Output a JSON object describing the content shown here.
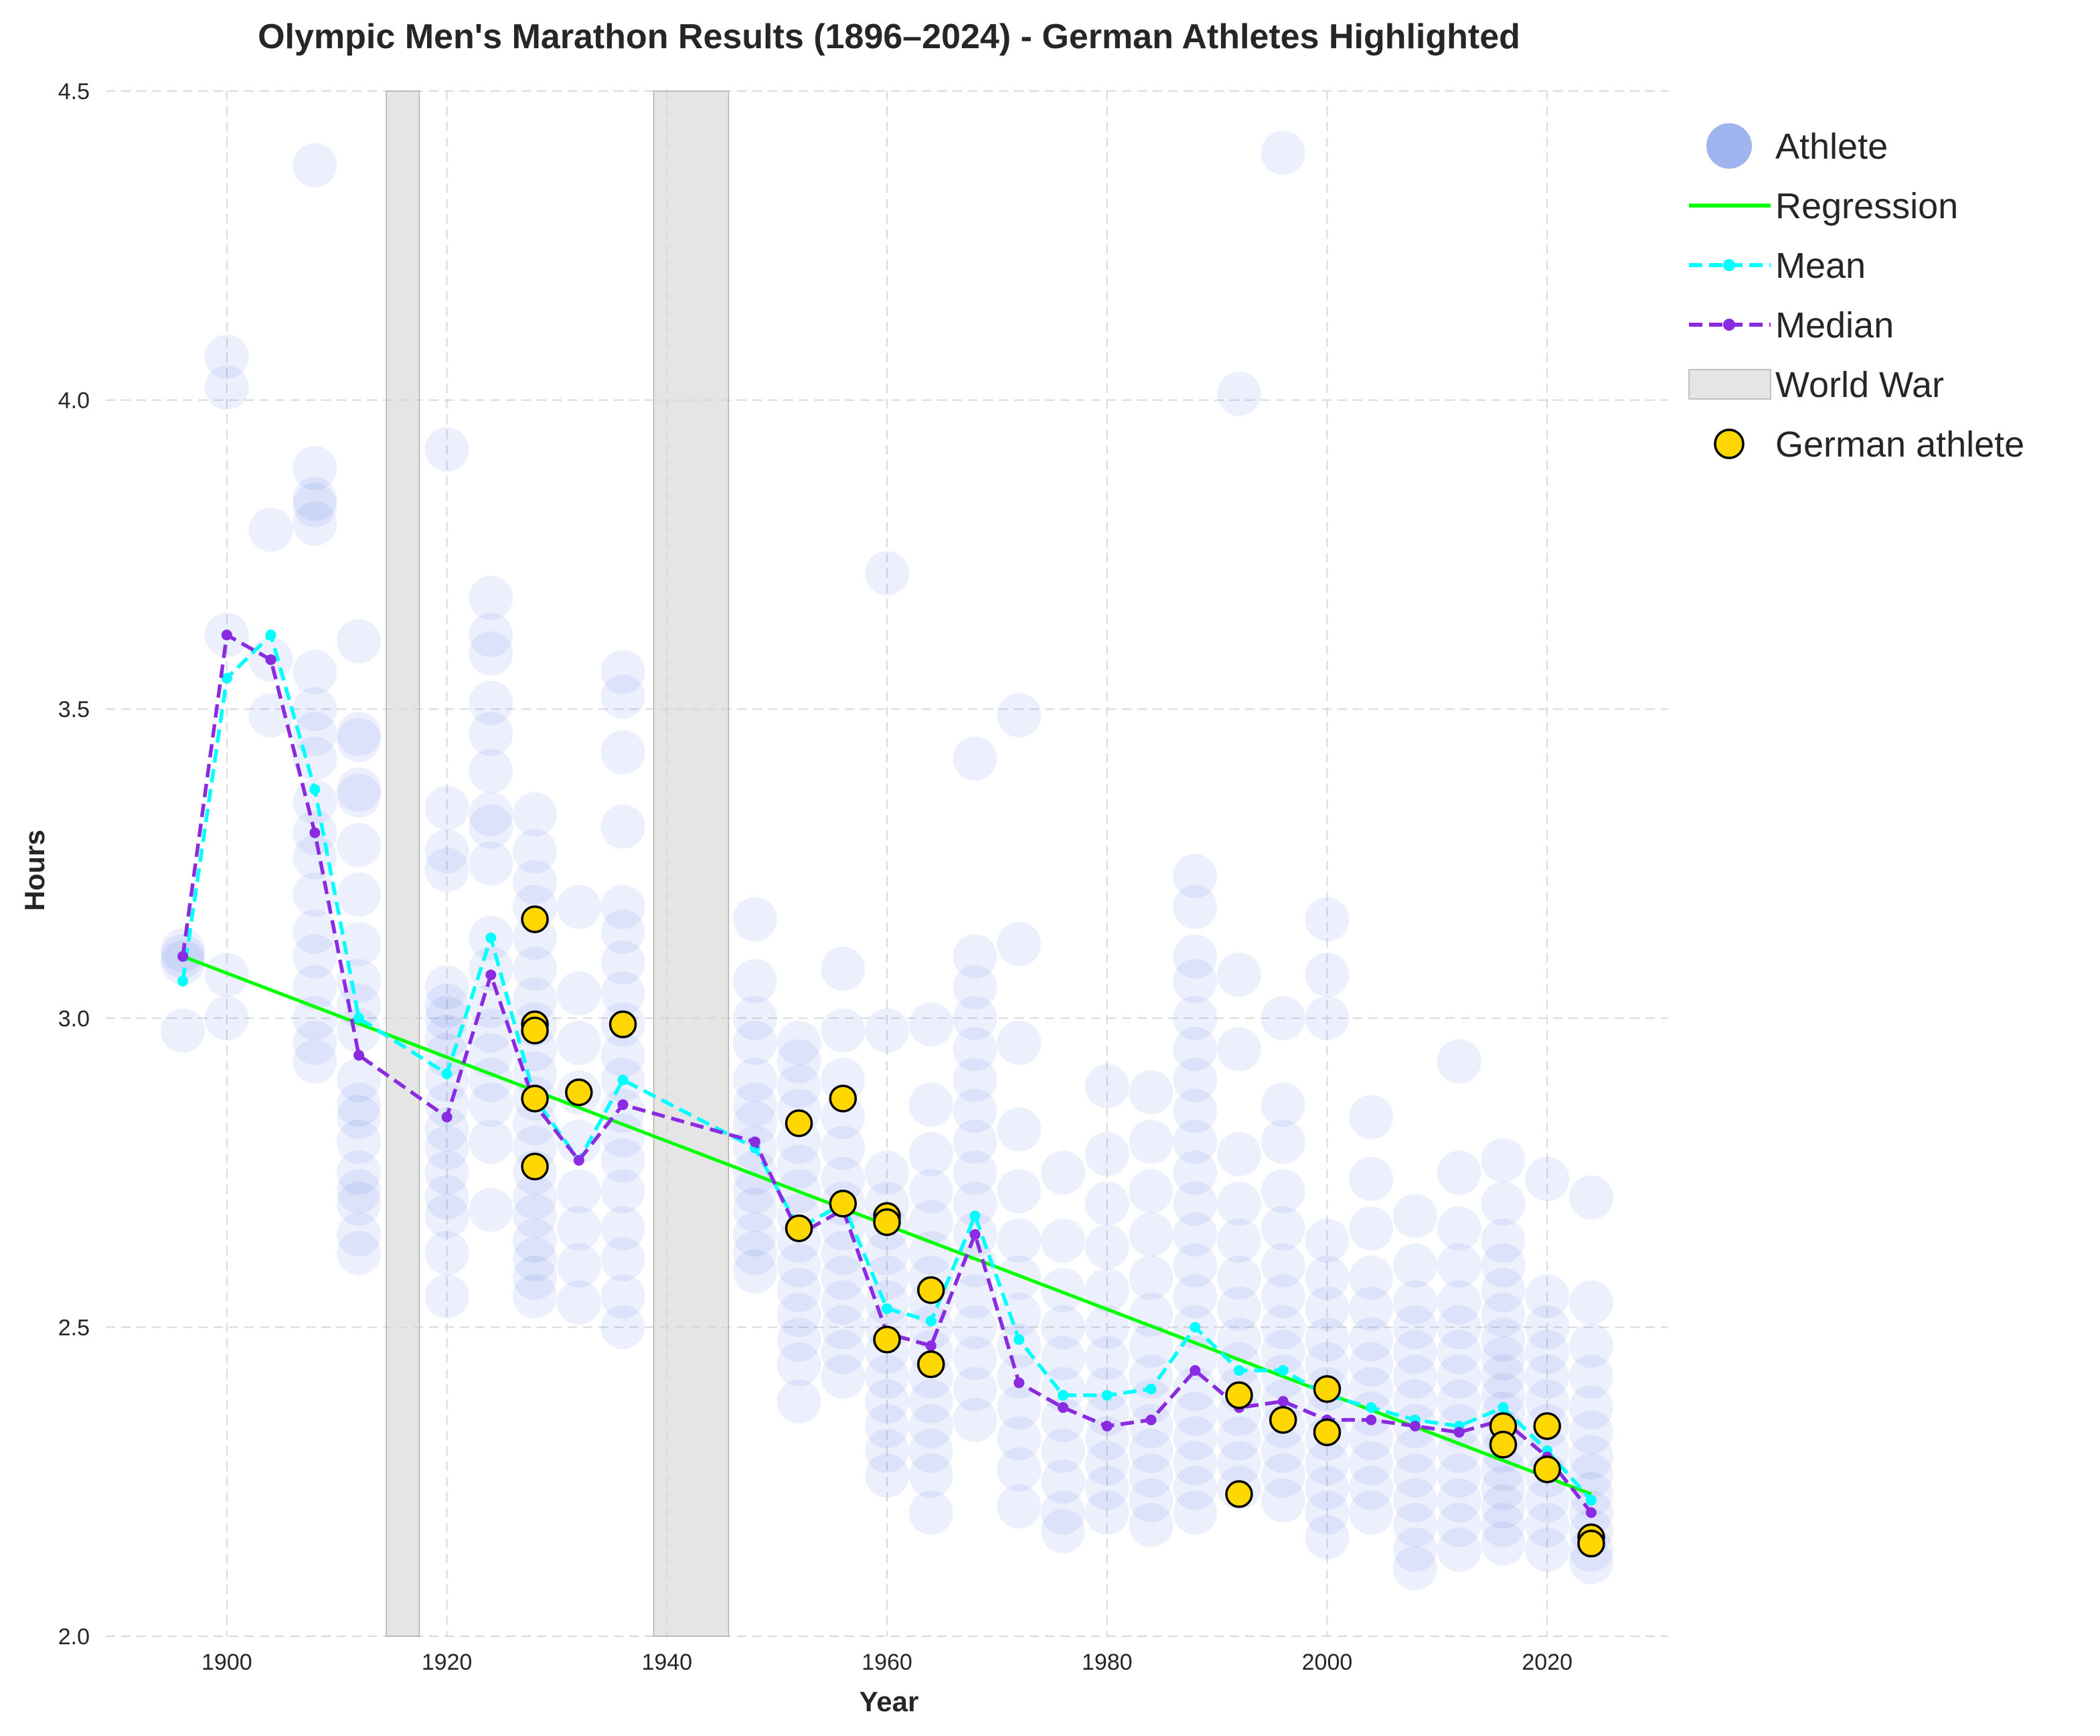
{
  "chart_data": {
    "type": "scatter",
    "title": "Olympic Men's Marathon Results (1896–2024) - German Athletes Highlighted",
    "xlabel": "Year",
    "ylabel": "Hours",
    "xlim": [
      1889,
      2031
    ],
    "ylim": [
      2.0,
      4.5
    ],
    "x_ticks": [
      1900,
      1920,
      1940,
      1960,
      1980,
      2000,
      2020
    ],
    "y_ticks": [
      2.0,
      2.5,
      3.0,
      3.5,
      4.0,
      4.5
    ],
    "x_tick_labels": [
      "1900",
      "1920",
      "1940",
      "1960",
      "1980",
      "2000",
      "2020"
    ],
    "y_tick_labels": [
      "2.0",
      "2.5",
      "3.0",
      "3.5",
      "4.0",
      "4.5"
    ],
    "grid": true,
    "legend_position": "top-right, outside plot",
    "legend": [
      {
        "label": "Athlete",
        "marker": "circle",
        "color": "#4169e1"
      },
      {
        "label": "Regression",
        "marker": "line",
        "color": "#00ff00"
      },
      {
        "label": "Mean",
        "marker": "dashed-line-dot",
        "color": "#00ffff"
      },
      {
        "label": "Median",
        "marker": "dashed-line-dot",
        "color": "#8a2be2"
      },
      {
        "label": "World War",
        "marker": "band",
        "color": "#d3d3d3"
      },
      {
        "label": "German athlete",
        "marker": "circle-outlined",
        "color": "#ffd700"
      }
    ],
    "colors": {
      "athlete": "#4169e1",
      "regression": "#00ff00",
      "mean": "#00ffff",
      "median": "#8a2be2",
      "war_band": "#d3d3d3",
      "german_fill": "#ffd700",
      "german_edge": "#000000"
    },
    "world_wars": [
      {
        "start": 1914.5,
        "end": 1917.5
      },
      {
        "start": 1938.8,
        "end": 1945.6
      }
    ],
    "regression": {
      "x": [
        1896,
        2024
      ],
      "y": [
        3.1,
        2.23
      ]
    },
    "mean": {
      "x": [
        1896,
        1900,
        1904,
        1908,
        1912,
        1920,
        1924,
        1928,
        1932,
        1936,
        1948,
        1952,
        1956,
        1960,
        1964,
        1968,
        1972,
        1976,
        1980,
        1984,
        1988,
        1992,
        1996,
        2000,
        2004,
        2008,
        2012,
        2016,
        2020,
        2024
      ],
      "y": [
        3.06,
        3.55,
        3.62,
        3.37,
        3.0,
        2.91,
        3.13,
        2.87,
        2.77,
        2.9,
        2.79,
        2.66,
        2.7,
        2.53,
        2.51,
        2.68,
        2.48,
        2.39,
        2.39,
        2.4,
        2.5,
        2.43,
        2.43,
        2.39,
        2.37,
        2.35,
        2.34,
        2.37,
        2.3,
        2.22
      ]
    },
    "median": {
      "x": [
        1896,
        1900,
        1904,
        1908,
        1912,
        1920,
        1924,
        1928,
        1932,
        1936,
        1948,
        1952,
        1956,
        1960,
        1964,
        1968,
        1972,
        1976,
        1980,
        1984,
        1988,
        1992,
        1996,
        2000,
        2004,
        2008,
        2012,
        2016,
        2020,
        2024
      ],
      "y": [
        3.1,
        3.62,
        3.58,
        3.3,
        2.94,
        2.84,
        3.07,
        2.86,
        2.77,
        2.86,
        2.8,
        2.65,
        2.69,
        2.49,
        2.47,
        2.65,
        2.41,
        2.37,
        2.34,
        2.35,
        2.43,
        2.37,
        2.38,
        2.35,
        2.35,
        2.34,
        2.33,
        2.35,
        2.29,
        2.2
      ]
    },
    "athletes_by_year": [
      {
        "year": 1896,
        "times": [
          3.11,
          3.1,
          3.09,
          2.98
        ]
      },
      {
        "year": 1900,
        "times": [
          4.07,
          4.02,
          3.62,
          3.07,
          3.0
        ]
      },
      {
        "year": 1904,
        "times": [
          3.79,
          3.58,
          3.49
        ]
      },
      {
        "year": 1908,
        "times": [
          4.38,
          3.89,
          3.84,
          3.83,
          3.8,
          3.56,
          3.5,
          3.46,
          3.42,
          3.35,
          3.3,
          3.26,
          3.2,
          3.14,
          3.1,
          3.05,
          3.0,
          2.96,
          2.93
        ]
      },
      {
        "year": 1912,
        "times": [
          3.61,
          3.46,
          3.45,
          3.37,
          3.36,
          3.28,
          3.2,
          3.12,
          3.06,
          3.02,
          2.98,
          2.9,
          2.86,
          2.84,
          2.8,
          2.75,
          2.72,
          2.7,
          2.65,
          2.62
        ]
      },
      {
        "year": 1920,
        "times": [
          3.92,
          3.34,
          3.27,
          3.24,
          3.05,
          3.02,
          3.0,
          2.97,
          2.94,
          2.9,
          2.86,
          2.82,
          2.79,
          2.75,
          2.71,
          2.68,
          2.62,
          2.55
        ]
      },
      {
        "year": 1924,
        "times": [
          3.68,
          3.62,
          3.59,
          3.51,
          3.46,
          3.4,
          3.33,
          3.31,
          3.25,
          3.13,
          3.08,
          3.02,
          2.98,
          2.94,
          2.9,
          2.86,
          2.8,
          2.69
        ]
      },
      {
        "year": 1928,
        "times": [
          3.33,
          3.27,
          3.22,
          3.18,
          3.13,
          3.08,
          3.03,
          2.99,
          2.95,
          2.91,
          2.87,
          2.83,
          2.79,
          2.75,
          2.71,
          2.68,
          2.64,
          2.61,
          2.58,
          2.55
        ]
      },
      {
        "year": 1932,
        "times": [
          3.18,
          3.04,
          2.96,
          2.88,
          2.8,
          2.72,
          2.66,
          2.6,
          2.54
        ]
      },
      {
        "year": 1936,
        "times": [
          3.56,
          3.52,
          3.43,
          3.31,
          3.18,
          3.14,
          3.09,
          3.04,
          2.99,
          2.94,
          2.9,
          2.85,
          2.81,
          2.77,
          2.72,
          2.66,
          2.61,
          2.55,
          2.5
        ]
      },
      {
        "year": 1948,
        "times": [
          3.16,
          3.06,
          3.0,
          2.96,
          2.9,
          2.86,
          2.83,
          2.79,
          2.75,
          2.72,
          2.69,
          2.65,
          2.62,
          2.59
        ]
      },
      {
        "year": 1952,
        "times": [
          2.96,
          2.93,
          2.89,
          2.85,
          2.8,
          2.76,
          2.72,
          2.68,
          2.64,
          2.6,
          2.56,
          2.52,
          2.48,
          2.44,
          2.38
        ]
      },
      {
        "year": 1956,
        "times": [
          3.08,
          2.98,
          2.9,
          2.84,
          2.79,
          2.74,
          2.7,
          2.66,
          2.62,
          2.58,
          2.54,
          2.5,
          2.46,
          2.42
        ]
      },
      {
        "year": 1960,
        "times": [
          3.72,
          2.98,
          2.75,
          2.7,
          2.66,
          2.62,
          2.58,
          2.54,
          2.5,
          2.46,
          2.42,
          2.38,
          2.34,
          2.3,
          2.26
        ]
      },
      {
        "year": 1964,
        "times": [
          2.99,
          2.86,
          2.78,
          2.72,
          2.67,
          2.62,
          2.58,
          2.54,
          2.5,
          2.46,
          2.42,
          2.38,
          2.34,
          2.3,
          2.26,
          2.2
        ]
      },
      {
        "year": 1968,
        "times": [
          3.42,
          3.1,
          3.05,
          3.0,
          2.95,
          2.9,
          2.85,
          2.8,
          2.75,
          2.7,
          2.65,
          2.6,
          2.55,
          2.5,
          2.45,
          2.4,
          2.35
        ]
      },
      {
        "year": 1972,
        "times": [
          3.49,
          3.12,
          2.96,
          2.82,
          2.72,
          2.64,
          2.58,
          2.52,
          2.47,
          2.42,
          2.37,
          2.32,
          2.27,
          2.21
        ]
      },
      {
        "year": 1976,
        "times": [
          2.75,
          2.64,
          2.56,
          2.5,
          2.45,
          2.4,
          2.35,
          2.3,
          2.25,
          2.2,
          2.17
        ]
      },
      {
        "year": 1980,
        "times": [
          2.89,
          2.78,
          2.7,
          2.63,
          2.56,
          2.5,
          2.45,
          2.4,
          2.36,
          2.32,
          2.28,
          2.24,
          2.2
        ]
      },
      {
        "year": 1984,
        "times": [
          2.88,
          2.8,
          2.72,
          2.65,
          2.58,
          2.52,
          2.47,
          2.42,
          2.38,
          2.34,
          2.3,
          2.26,
          2.22,
          2.18
        ]
      },
      {
        "year": 1988,
        "times": [
          3.23,
          3.18,
          3.1,
          3.06,
          3.0,
          2.95,
          2.9,
          2.85,
          2.8,
          2.75,
          2.7,
          2.65,
          2.6,
          2.55,
          2.5,
          2.45,
          2.4,
          2.36,
          2.32,
          2.28,
          2.24,
          2.2
        ]
      },
      {
        "year": 1992,
        "times": [
          4.01,
          3.07,
          2.95,
          2.78,
          2.7,
          2.64,
          2.58,
          2.53,
          2.48,
          2.44,
          2.4,
          2.36,
          2.32,
          2.28,
          2.24
        ]
      },
      {
        "year": 1996,
        "times": [
          4.4,
          3.0,
          2.86,
          2.8,
          2.72,
          2.66,
          2.6,
          2.55,
          2.5,
          2.46,
          2.42,
          2.38,
          2.34,
          2.3,
          2.26,
          2.22
        ]
      },
      {
        "year": 2000,
        "times": [
          3.16,
          3.07,
          3.0,
          2.64,
          2.58,
          2.53,
          2.48,
          2.44,
          2.4,
          2.36,
          2.32,
          2.28,
          2.24,
          2.2,
          2.16
        ]
      },
      {
        "year": 2004,
        "times": [
          2.84,
          2.74,
          2.66,
          2.58,
          2.53,
          2.48,
          2.44,
          2.4,
          2.36,
          2.32,
          2.28,
          2.24,
          2.2
        ]
      },
      {
        "year": 2008,
        "times": [
          2.68,
          2.6,
          2.54,
          2.5,
          2.46,
          2.42,
          2.38,
          2.34,
          2.3,
          2.26,
          2.22,
          2.18,
          2.14,
          2.11
        ]
      },
      {
        "year": 2012,
        "times": [
          2.93,
          2.75,
          2.66,
          2.6,
          2.54,
          2.5,
          2.46,
          2.42,
          2.38,
          2.34,
          2.3,
          2.26,
          2.22,
          2.18,
          2.14
        ]
      },
      {
        "year": 2016,
        "times": [
          2.77,
          2.7,
          2.64,
          2.6,
          2.56,
          2.52,
          2.48,
          2.45,
          2.42,
          2.39,
          2.36,
          2.33,
          2.3,
          2.27,
          2.24,
          2.21,
          2.18,
          2.15
        ]
      },
      {
        "year": 2020,
        "times": [
          2.74,
          2.55,
          2.5,
          2.46,
          2.42,
          2.38,
          2.34,
          2.3,
          2.26,
          2.22,
          2.18,
          2.14
        ]
      },
      {
        "year": 2024,
        "times": [
          2.71,
          2.54,
          2.47,
          2.42,
          2.37,
          2.33,
          2.29,
          2.26,
          2.23,
          2.2,
          2.17,
          2.14,
          2.12
        ]
      }
    ],
    "german_athletes": [
      {
        "year": 1928,
        "time": 3.16
      },
      {
        "year": 1928,
        "time": 2.99
      },
      {
        "year": 1928,
        "time": 2.98
      },
      {
        "year": 1928,
        "time": 2.87
      },
      {
        "year": 1928,
        "time": 2.76
      },
      {
        "year": 1932,
        "time": 2.88
      },
      {
        "year": 1936,
        "time": 2.99
      },
      {
        "year": 1952,
        "time": 2.83
      },
      {
        "year": 1952,
        "time": 2.66
      },
      {
        "year": 1956,
        "time": 2.87
      },
      {
        "year": 1956,
        "time": 2.7
      },
      {
        "year": 1960,
        "time": 2.68
      },
      {
        "year": 1960,
        "time": 2.67
      },
      {
        "year": 1960,
        "time": 2.48
      },
      {
        "year": 1964,
        "time": 2.56
      },
      {
        "year": 1964,
        "time": 2.44
      },
      {
        "year": 1992,
        "time": 2.39
      },
      {
        "year": 1992,
        "time": 2.23
      },
      {
        "year": 1996,
        "time": 2.35
      },
      {
        "year": 2000,
        "time": 2.4
      },
      {
        "year": 2000,
        "time": 2.33
      },
      {
        "year": 2016,
        "time": 2.34
      },
      {
        "year": 2016,
        "time": 2.31
      },
      {
        "year": 2020,
        "time": 2.34
      },
      {
        "year": 2020,
        "time": 2.27
      },
      {
        "year": 2024,
        "time": 2.16
      },
      {
        "year": 2024,
        "time": 2.15
      }
    ]
  }
}
